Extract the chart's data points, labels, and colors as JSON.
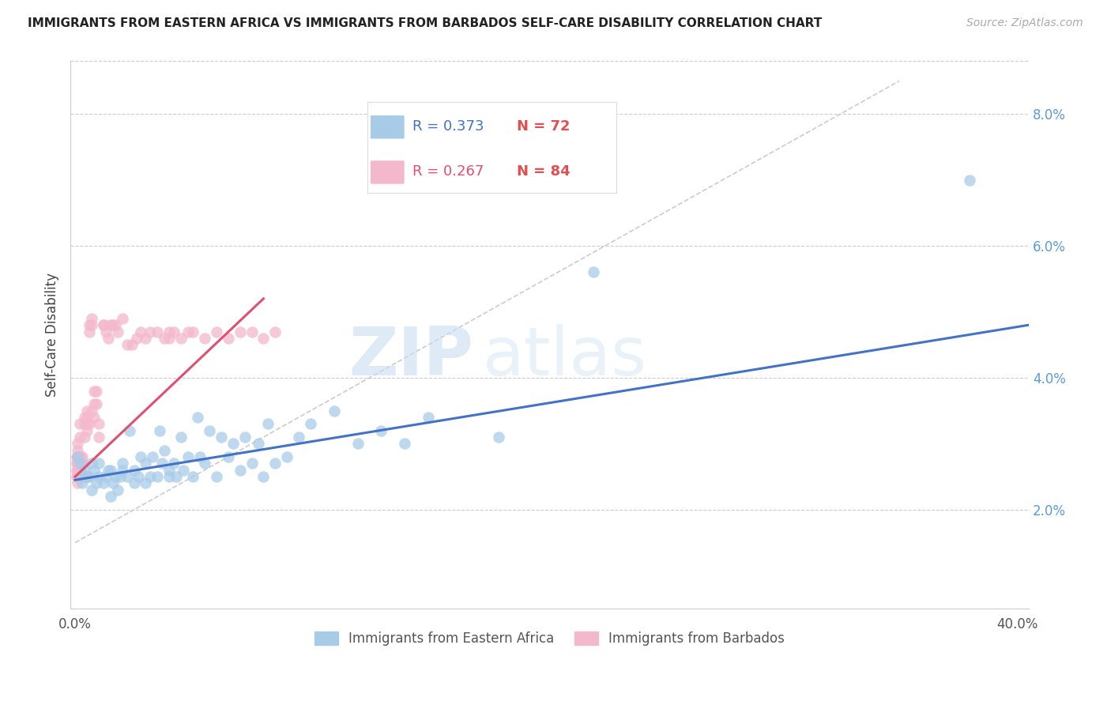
{
  "title": "IMMIGRANTS FROM EASTERN AFRICA VS IMMIGRANTS FROM BARBADOS SELF-CARE DISABILITY CORRELATION CHART",
  "source": "Source: ZipAtlas.com",
  "ylabel": "Self-Care Disability",
  "right_yticks": [
    "8.0%",
    "6.0%",
    "4.0%",
    "2.0%"
  ],
  "right_ytick_vals": [
    0.08,
    0.06,
    0.04,
    0.02
  ],
  "xlim": [
    -0.002,
    0.405
  ],
  "ylim": [
    0.005,
    0.088
  ],
  "legend_r1": "R = 0.373",
  "legend_n1": "N = 72",
  "legend_r2": "R = 0.267",
  "legend_n2": "N = 84",
  "color_blue": "#a8cce8",
  "color_pink": "#f4b8cc",
  "color_line_blue": "#4472c4",
  "color_line_pink": "#e05070",
  "color_rtick": "#5b9bd5",
  "watermark_zip": "ZIP",
  "watermark_atlas": "atlas",
  "blue_scatter_x": [
    0.001,
    0.002,
    0.003,
    0.003,
    0.004,
    0.005,
    0.006,
    0.007,
    0.007,
    0.008,
    0.009,
    0.01,
    0.01,
    0.012,
    0.013,
    0.014,
    0.015,
    0.015,
    0.016,
    0.017,
    0.018,
    0.019,
    0.02,
    0.02,
    0.022,
    0.023,
    0.025,
    0.025,
    0.027,
    0.028,
    0.03,
    0.03,
    0.032,
    0.033,
    0.035,
    0.036,
    0.037,
    0.038,
    0.04,
    0.04,
    0.042,
    0.043,
    0.045,
    0.046,
    0.048,
    0.05,
    0.052,
    0.053,
    0.055,
    0.057,
    0.06,
    0.062,
    0.065,
    0.067,
    0.07,
    0.072,
    0.075,
    0.078,
    0.08,
    0.082,
    0.085,
    0.09,
    0.095,
    0.1,
    0.11,
    0.12,
    0.13,
    0.14,
    0.15,
    0.18,
    0.22,
    0.38
  ],
  "blue_scatter_y": [
    0.028,
    0.027,
    0.025,
    0.024,
    0.026,
    0.025,
    0.025,
    0.023,
    0.027,
    0.026,
    0.024,
    0.025,
    0.027,
    0.024,
    0.025,
    0.026,
    0.022,
    0.026,
    0.024,
    0.025,
    0.023,
    0.025,
    0.026,
    0.027,
    0.025,
    0.032,
    0.024,
    0.026,
    0.025,
    0.028,
    0.024,
    0.027,
    0.025,
    0.028,
    0.025,
    0.032,
    0.027,
    0.029,
    0.026,
    0.025,
    0.027,
    0.025,
    0.031,
    0.026,
    0.028,
    0.025,
    0.034,
    0.028,
    0.027,
    0.032,
    0.025,
    0.031,
    0.028,
    0.03,
    0.026,
    0.031,
    0.027,
    0.03,
    0.025,
    0.033,
    0.027,
    0.028,
    0.031,
    0.033,
    0.035,
    0.03,
    0.032,
    0.03,
    0.034,
    0.031,
    0.056,
    0.07
  ],
  "pink_scatter_x": [
    0.0005,
    0.0005,
    0.0005,
    0.0008,
    0.001,
    0.001,
    0.001,
    0.001,
    0.001,
    0.001,
    0.001,
    0.001,
    0.001,
    0.0012,
    0.0012,
    0.0015,
    0.0015,
    0.002,
    0.002,
    0.002,
    0.002,
    0.002,
    0.002,
    0.0025,
    0.0025,
    0.003,
    0.003,
    0.003,
    0.003,
    0.0035,
    0.0035,
    0.004,
    0.004,
    0.004,
    0.004,
    0.0045,
    0.005,
    0.005,
    0.005,
    0.005,
    0.005,
    0.006,
    0.006,
    0.006,
    0.007,
    0.007,
    0.007,
    0.008,
    0.008,
    0.008,
    0.009,
    0.009,
    0.01,
    0.01,
    0.012,
    0.012,
    0.013,
    0.014,
    0.015,
    0.016,
    0.017,
    0.018,
    0.02,
    0.022,
    0.024,
    0.026,
    0.028,
    0.03,
    0.032,
    0.035,
    0.038,
    0.04,
    0.04,
    0.042,
    0.045,
    0.048,
    0.05,
    0.055,
    0.06,
    0.065,
    0.07,
    0.075,
    0.08,
    0.085
  ],
  "pink_scatter_y": [
    0.025,
    0.027,
    0.028,
    0.026,
    0.025,
    0.027,
    0.026,
    0.028,
    0.027,
    0.029,
    0.025,
    0.024,
    0.03,
    0.026,
    0.028,
    0.025,
    0.027,
    0.025,
    0.027,
    0.026,
    0.028,
    0.031,
    0.033,
    0.026,
    0.028,
    0.027,
    0.025,
    0.028,
    0.025,
    0.025,
    0.027,
    0.025,
    0.034,
    0.031,
    0.033,
    0.025,
    0.025,
    0.035,
    0.033,
    0.034,
    0.032,
    0.048,
    0.047,
    0.033,
    0.049,
    0.048,
    0.035,
    0.036,
    0.038,
    0.034,
    0.036,
    0.038,
    0.031,
    0.033,
    0.048,
    0.048,
    0.047,
    0.046,
    0.048,
    0.048,
    0.048,
    0.047,
    0.049,
    0.045,
    0.045,
    0.046,
    0.047,
    0.046,
    0.047,
    0.047,
    0.046,
    0.047,
    0.046,
    0.047,
    0.046,
    0.047,
    0.047,
    0.046,
    0.047,
    0.046,
    0.047,
    0.047,
    0.046,
    0.047
  ]
}
